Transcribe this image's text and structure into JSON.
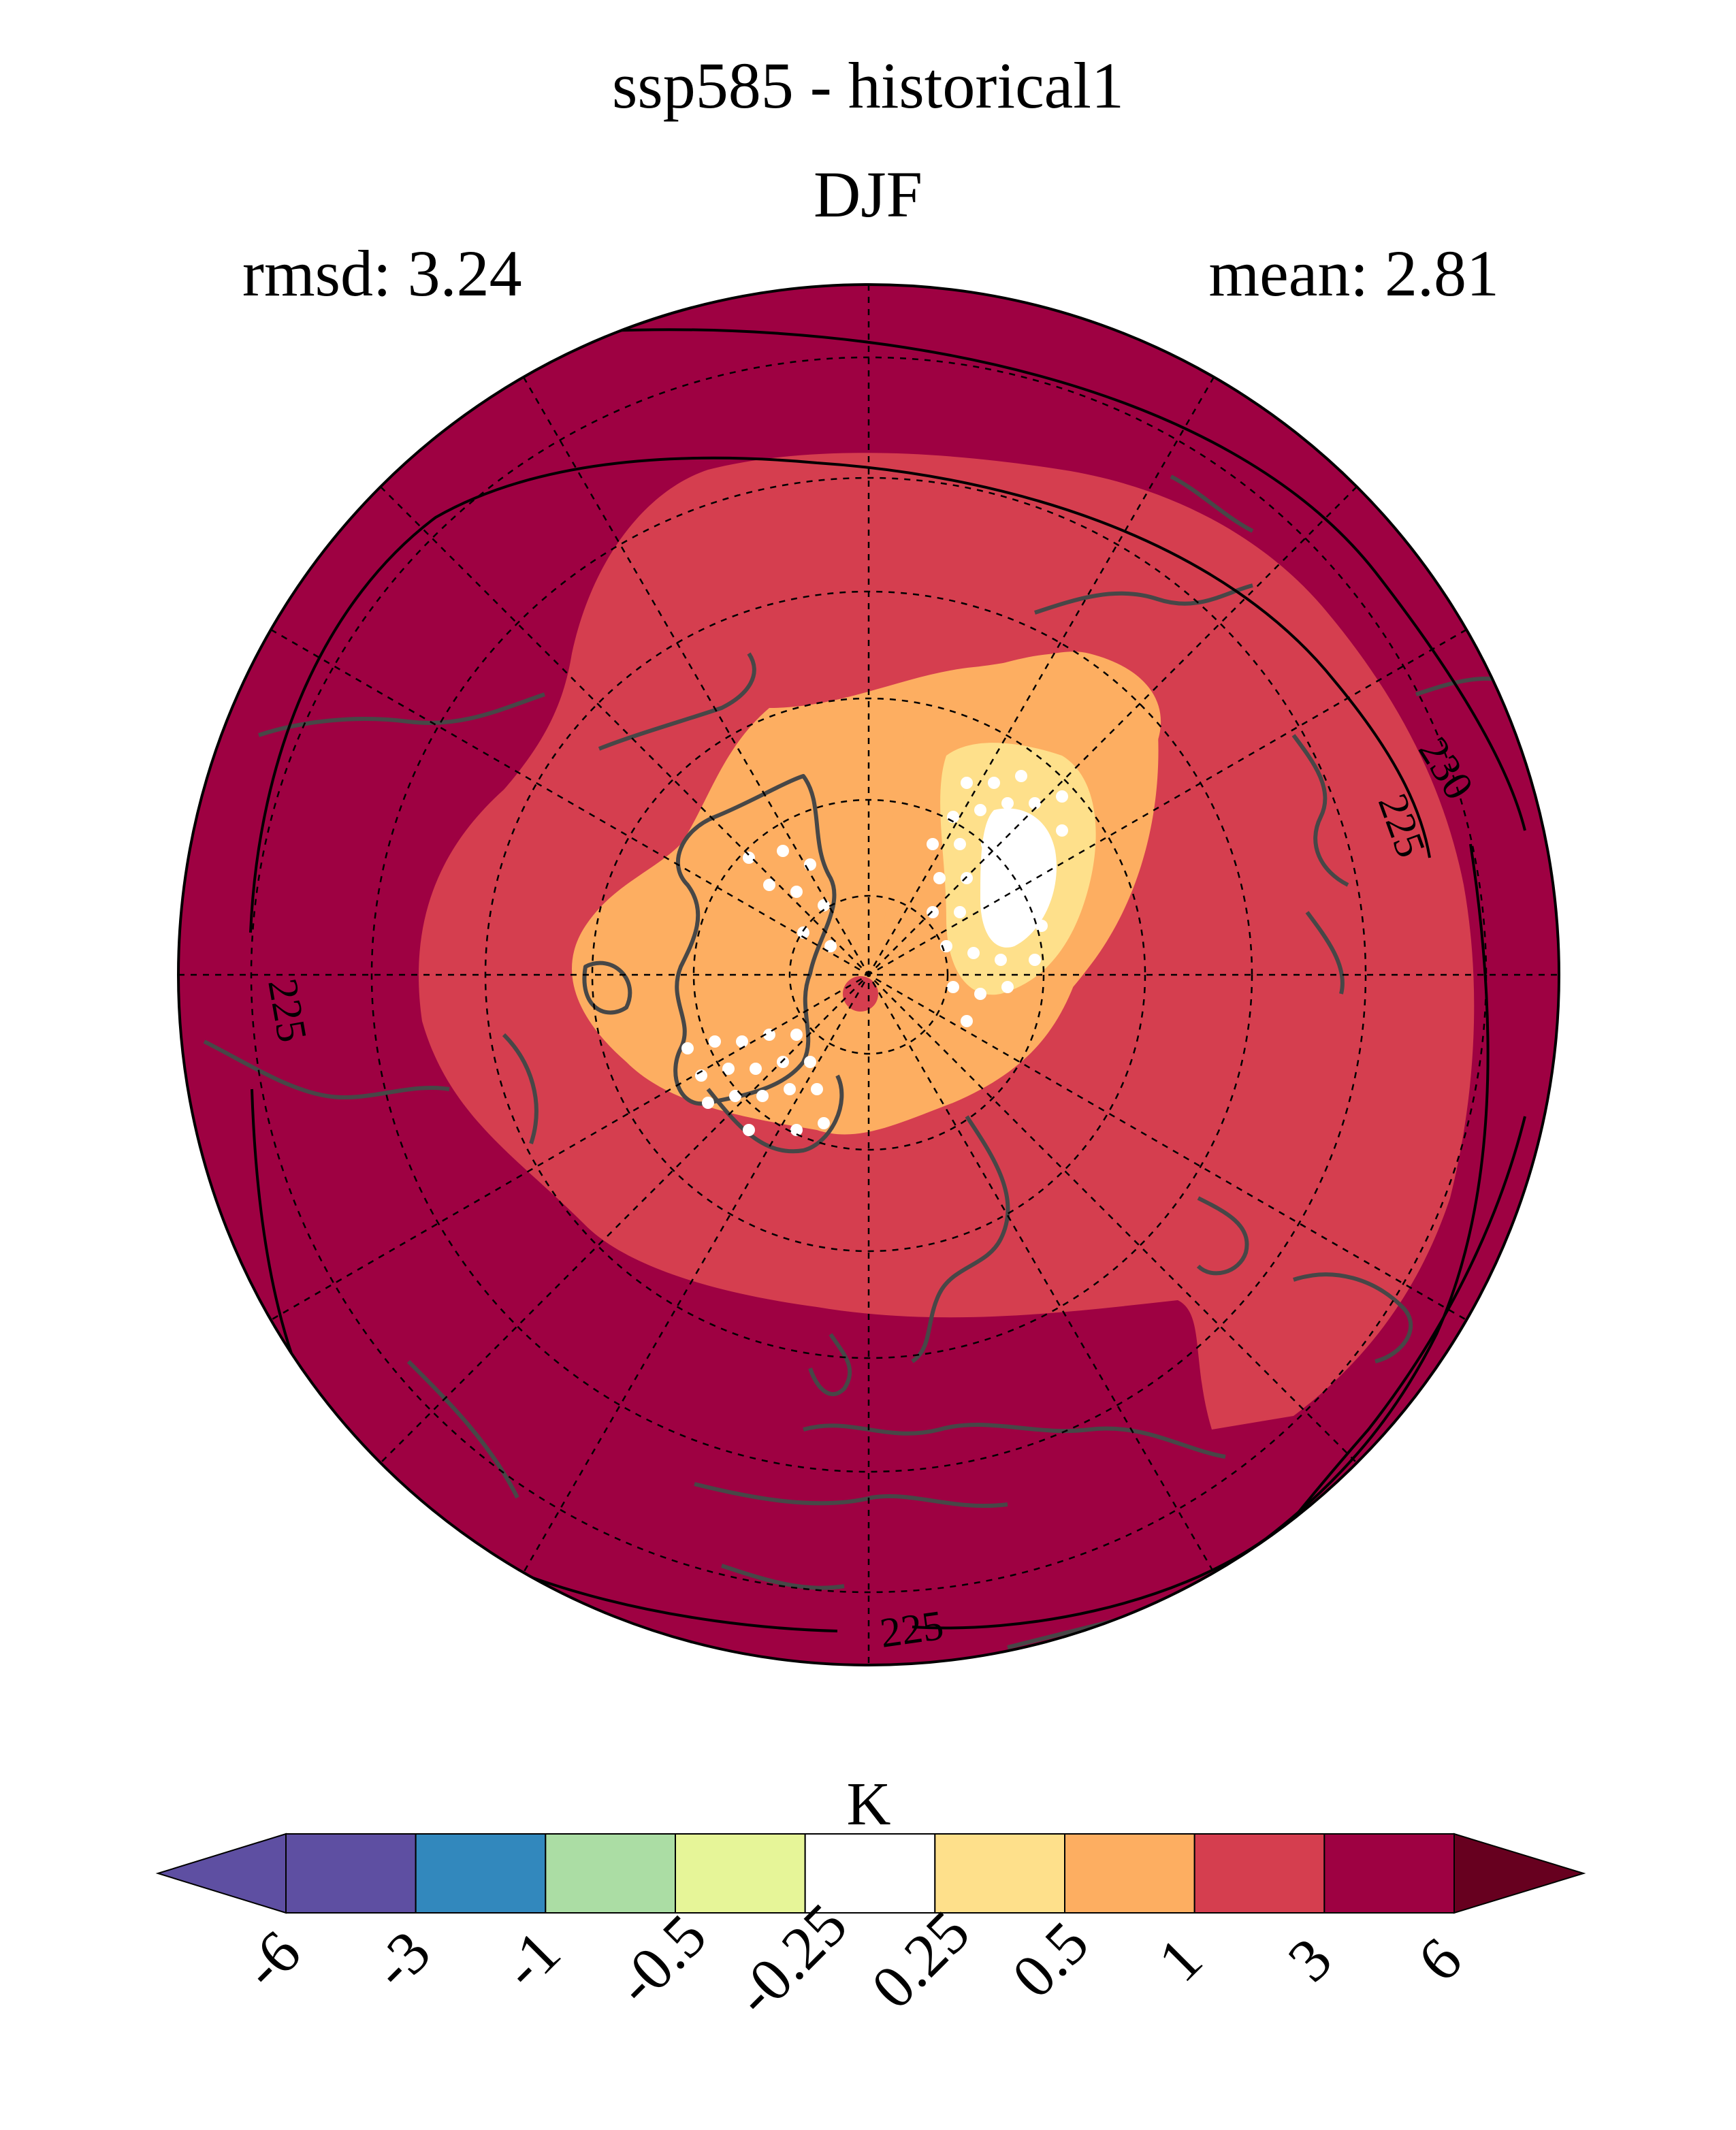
{
  "header": {
    "title": "ssp585 - historical1",
    "season": "DJF",
    "rmsd": "rmsd: 3.24",
    "mean": "mean: 2.81"
  },
  "map": {
    "projection": "north-polar-stereographic",
    "contour_labels": [
      "225",
      "225",
      "225",
      "230"
    ],
    "fill_colors": {
      "outer": "#9e0142",
      "band_1_3": "#d53e4f",
      "band_05_1": "#fdae61",
      "band_025_05": "#fee08b",
      "band_neg025_025": "#ffffff"
    },
    "stippling": "white-dots"
  },
  "colorbar": {
    "unit": "K",
    "ticks": [
      "-6",
      "-3",
      "-1",
      "-0.5",
      "-0.25",
      "0.25",
      "0.5",
      "1",
      "3",
      "6"
    ],
    "under_color": "#5e4fa2",
    "over_color": "#67001f",
    "colors": [
      "#5e4fa2",
      "#3288bd",
      "#abdda4",
      "#e6f598",
      "#ffffff",
      "#fee08b",
      "#fdae61",
      "#d53e4f",
      "#9e0142"
    ]
  }
}
